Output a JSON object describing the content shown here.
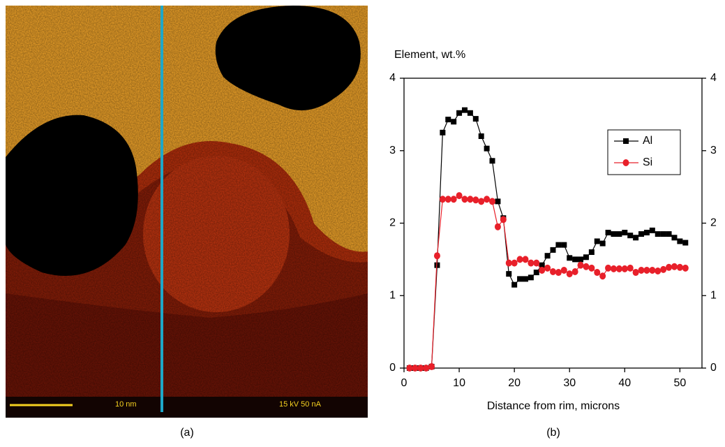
{
  "image_panel": {
    "label": "(a)",
    "annotations": [
      "10 nm",
      "15 kV 50 nA"
    ]
  },
  "chart_data": {
    "type": "line",
    "panel_label": "(b)",
    "y_label": "Element, wt.%",
    "x_label": "Distance from rim, microns",
    "x": [
      1,
      2,
      3,
      4,
      5,
      6,
      7,
      8,
      9,
      10,
      11,
      12,
      13,
      14,
      15,
      16,
      17,
      18,
      19,
      20,
      21,
      22,
      23,
      24,
      25,
      26,
      27,
      28,
      29,
      30,
      31,
      32,
      33,
      34,
      35,
      36,
      37,
      38,
      39,
      40,
      41,
      42,
      43,
      44,
      45,
      46,
      47,
      48,
      49,
      50,
      51
    ],
    "series": [
      {
        "name": "Al",
        "color": "#000000",
        "marker": "square",
        "values": [
          0,
          0,
          0,
          0,
          0.02,
          1.42,
          3.25,
          3.43,
          3.4,
          3.52,
          3.56,
          3.52,
          3.44,
          3.2,
          3.03,
          2.86,
          2.3,
          2.07,
          1.3,
          1.15,
          1.23,
          1.23,
          1.25,
          1.32,
          1.42,
          1.55,
          1.63,
          1.7,
          1.7,
          1.52,
          1.5,
          1.5,
          1.53,
          1.6,
          1.75,
          1.72,
          1.87,
          1.85,
          1.85,
          1.87,
          1.83,
          1.8,
          1.85,
          1.87,
          1.9,
          1.85,
          1.85,
          1.85,
          1.8,
          1.75,
          1.73
        ]
      },
      {
        "name": "Si",
        "color": "#e8202a",
        "marker": "circle",
        "values": [
          0,
          0,
          0,
          0,
          0.02,
          1.55,
          2.33,
          2.33,
          2.33,
          2.38,
          2.33,
          2.33,
          2.32,
          2.3,
          2.33,
          2.3,
          1.95,
          2.05,
          1.45,
          1.45,
          1.5,
          1.5,
          1.45,
          1.45,
          1.35,
          1.38,
          1.33,
          1.32,
          1.35,
          1.3,
          1.33,
          1.42,
          1.4,
          1.38,
          1.32,
          1.27,
          1.38,
          1.37,
          1.37,
          1.37,
          1.38,
          1.32,
          1.35,
          1.35,
          1.35,
          1.34,
          1.36,
          1.39,
          1.4,
          1.39,
          1.38
        ]
      }
    ],
    "xlim": [
      0,
      54
    ],
    "xticks": [
      0,
      10,
      20,
      30,
      40,
      50
    ],
    "ylim": [
      0,
      4
    ],
    "yticks": [
      0,
      1,
      2,
      3,
      4
    ],
    "y2lim": [
      0,
      4
    ],
    "y2ticks": [
      0,
      1,
      2,
      3,
      4
    ]
  }
}
